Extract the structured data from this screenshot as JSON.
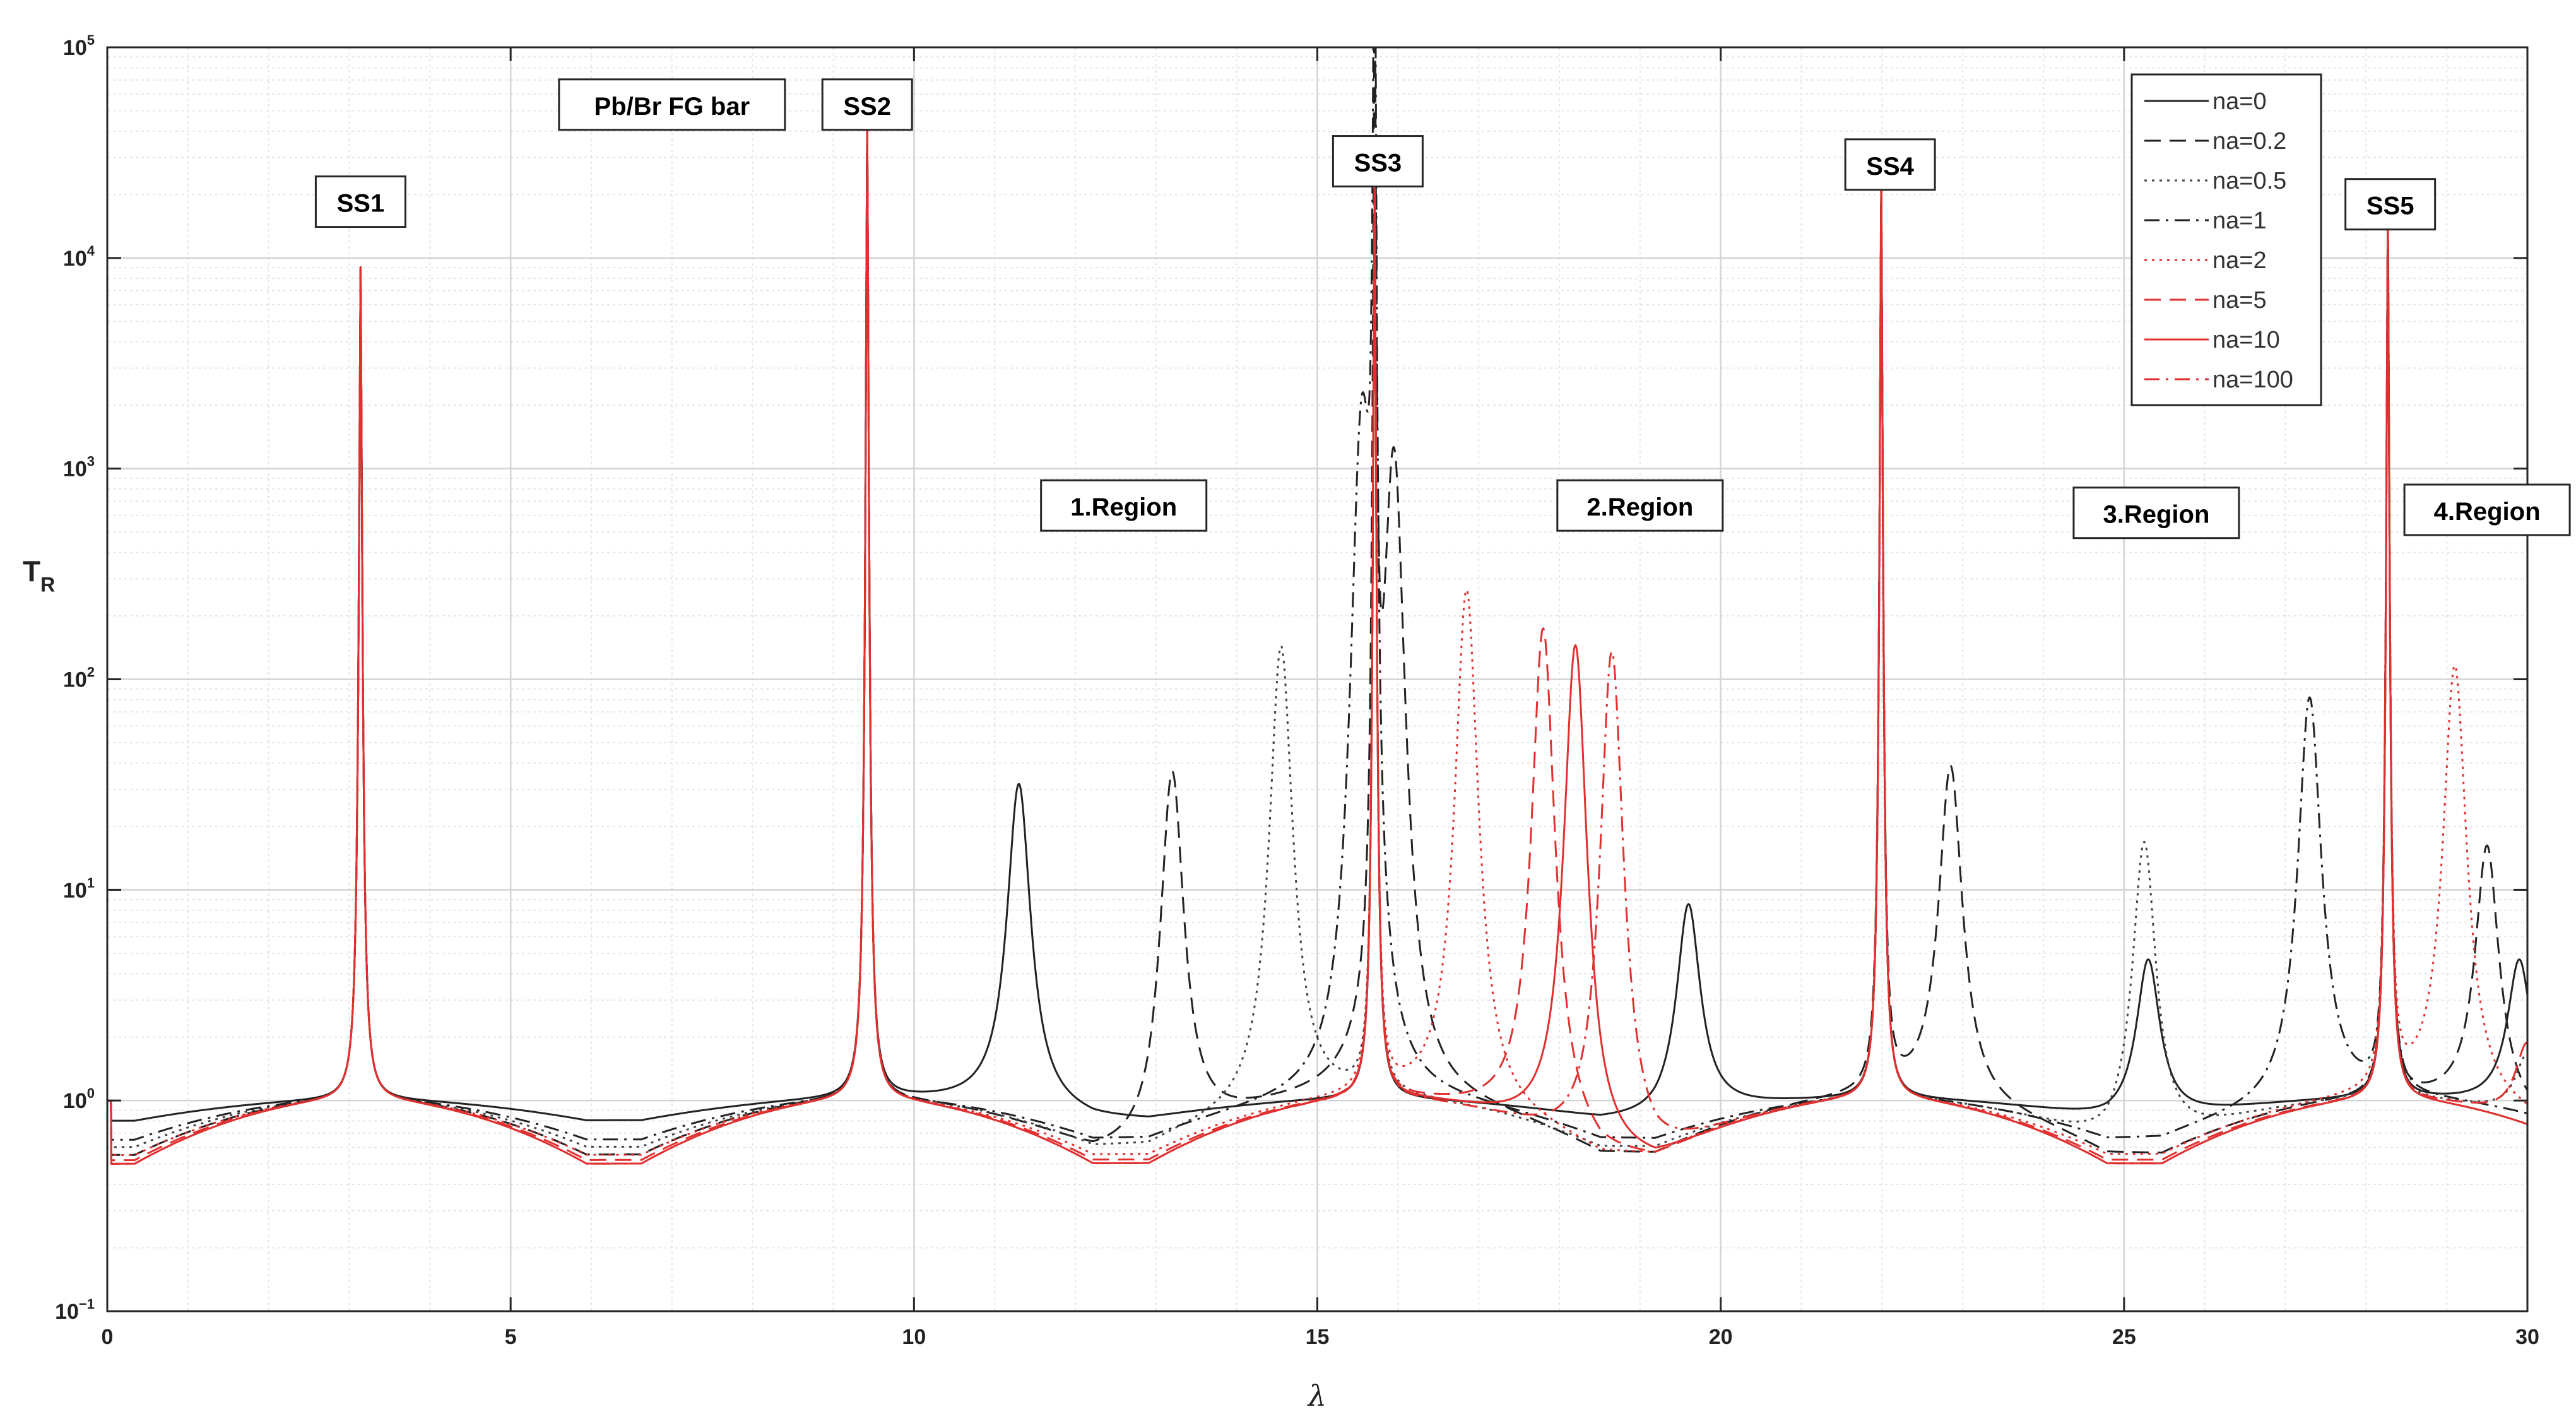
{
  "chart_data": {
    "type": "line",
    "title": "",
    "xlabel": "λ",
    "ylabel": "T",
    "ylabel_subscript": "R",
    "xlim": [
      0,
      30
    ],
    "ylim": [
      0.1,
      100000
    ],
    "yscale": "log",
    "grid": true,
    "x_ticks": [
      0,
      5,
      10,
      15,
      20,
      25,
      30
    ],
    "x_tick_labels": [
      "0",
      "5",
      "10",
      "15",
      "20",
      "25",
      "30"
    ],
    "y_ticks": [
      0.1,
      1,
      10,
      100,
      1000,
      10000,
      100000
    ],
    "y_tick_labels": [
      {
        "base": "10",
        "exp": "−1"
      },
      {
        "base": "10",
        "exp": "0"
      },
      {
        "base": "10",
        "exp": "1"
      },
      {
        "base": "10",
        "exp": "2"
      },
      {
        "base": "10",
        "exp": "3"
      },
      {
        "base": "10",
        "exp": "4"
      },
      {
        "base": "10",
        "exp": "5"
      }
    ],
    "legend_position": "top-right",
    "stop_band_peaks": {
      "SS1": 3.14,
      "SS2": 9.42,
      "SS3": 15.71,
      "SS4": 21.99,
      "SS5": 28.27
    },
    "series": [
      {
        "name": "na=0",
        "color": "#222222",
        "dash": "solid",
        "local_peaks": [
          [
            11.3,
            35
          ],
          [
            19.6,
            10
          ],
          [
            25.3,
            5.8
          ],
          [
            29.9,
            5
          ]
        ],
        "trough_level": 0.8
      },
      {
        "name": "na=0.2",
        "color": "#222222",
        "dash": "dashed",
        "local_peaks": [
          [
            13.2,
            57
          ],
          [
            15.95,
            1000
          ],
          [
            22.85,
            40
          ],
          [
            29.5,
            18
          ]
        ],
        "trough_level": 0.55
      },
      {
        "name": "na=0.5",
        "color": "#444444",
        "dash": "dotted",
        "local_peaks": [
          [
            14.55,
            155
          ],
          [
            25.25,
            28
          ],
          [
            30.0,
            2
          ]
        ],
        "trough_level": 0.6
      },
      {
        "name": "na=1",
        "color": "#222222",
        "dash": "dashdot",
        "local_peaks": [
          [
            15.55,
            1400
          ],
          [
            27.3,
            85
          ]
        ],
        "trough_level": 0.65
      },
      {
        "name": "na=2",
        "color": "#e03030",
        "dash": "dotted",
        "local_peaks": [
          [
            16.85,
            290
          ],
          [
            29.1,
            120
          ]
        ],
        "trough_level": 0.55
      },
      {
        "name": "na=5",
        "color": "#e03030",
        "dash": "dashed",
        "local_peaks": [
          [
            17.8,
            250
          ],
          [
            30.0,
            2.4
          ]
        ],
        "trough_level": 0.52
      },
      {
        "name": "na=10",
        "color": "#e03030",
        "dash": "solid",
        "local_peaks": [
          [
            18.2,
            250
          ]
        ],
        "trough_level": 0.5
      },
      {
        "name": "na=100",
        "color": "#e03030",
        "dash": "dashdot",
        "local_peaks": [
          [
            18.65,
            270
          ]
        ],
        "trough_level": 0.5
      }
    ],
    "annotations": [
      {
        "text": "SS1",
        "x": 3.14,
        "y": 18000
      },
      {
        "text": "Pb/Br FG bar",
        "x": 7.0,
        "y": 52000
      },
      {
        "text": "SS2",
        "x": 9.42,
        "y": 52000
      },
      {
        "text": "SS3",
        "x": 15.75,
        "y": 28000
      },
      {
        "text": "SS4",
        "x": 22.1,
        "y": 27000
      },
      {
        "text": "SS5",
        "x": 28.3,
        "y": 17500
      },
      {
        "text": "1.Region",
        "x": 12.6,
        "y": 650
      },
      {
        "text": "2.Region",
        "x": 19.0,
        "y": 650
      },
      {
        "text": "3.Region",
        "x": 25.4,
        "y": 600
      },
      {
        "text": "4.Region",
        "x": 29.5,
        "y": 620
      }
    ]
  }
}
